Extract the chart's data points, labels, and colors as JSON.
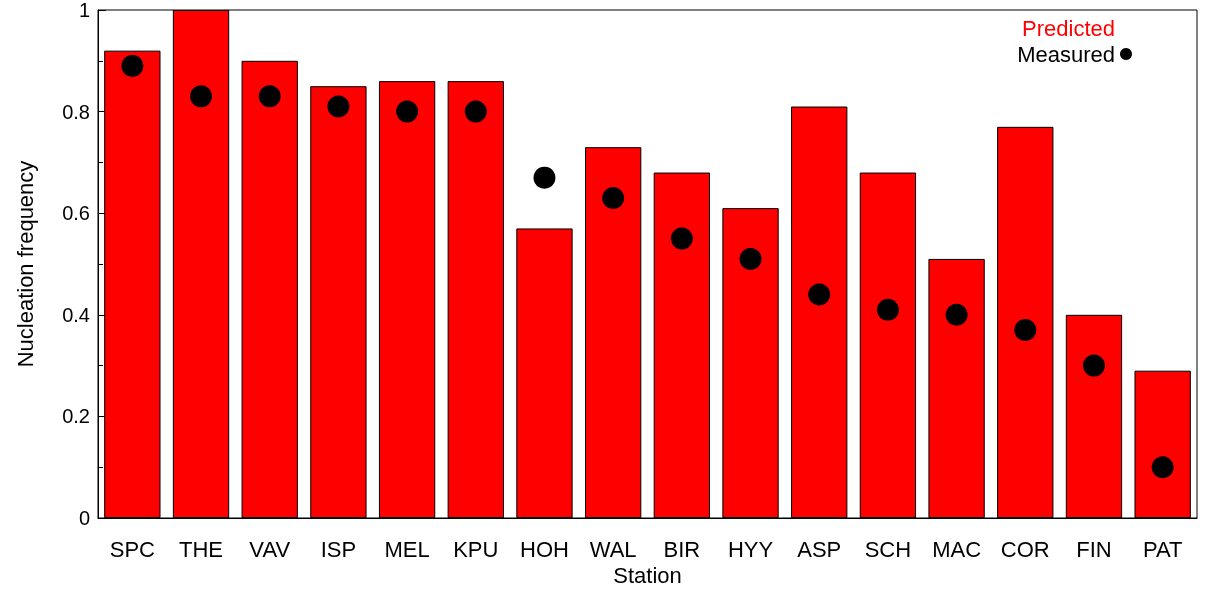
{
  "chart_data": {
    "type": "bar",
    "xlabel": "Station",
    "ylabel": "Nucleation frequency",
    "categories": [
      "SPC",
      "THE",
      "VAV",
      "ISP",
      "MEL",
      "KPU",
      "HOH",
      "WAL",
      "BIR",
      "HYY",
      "ASP",
      "SCH",
      "MAC",
      "COR",
      "FIN",
      "PAT"
    ],
    "series": [
      {
        "name": "Predicted",
        "color": "#ff0000",
        "values": [
          0.92,
          1.0,
          0.9,
          0.85,
          0.86,
          0.86,
          0.57,
          0.73,
          0.68,
          0.61,
          0.81,
          0.68,
          0.51,
          0.77,
          0.4,
          0.29
        ]
      },
      {
        "name": "Measured",
        "type": "scatter",
        "color": "#000000",
        "marker": "circle",
        "values": [
          0.89,
          0.83,
          0.83,
          0.81,
          0.8,
          0.8,
          0.67,
          0.63,
          0.55,
          0.51,
          0.44,
          0.41,
          0.4,
          0.37,
          0.3,
          0.1
        ]
      }
    ],
    "ylim": [
      0,
      1
    ],
    "yticks": [
      0,
      0.2,
      0.4,
      0.6,
      0.8,
      1
    ],
    "grid": false,
    "legend": "top right"
  }
}
